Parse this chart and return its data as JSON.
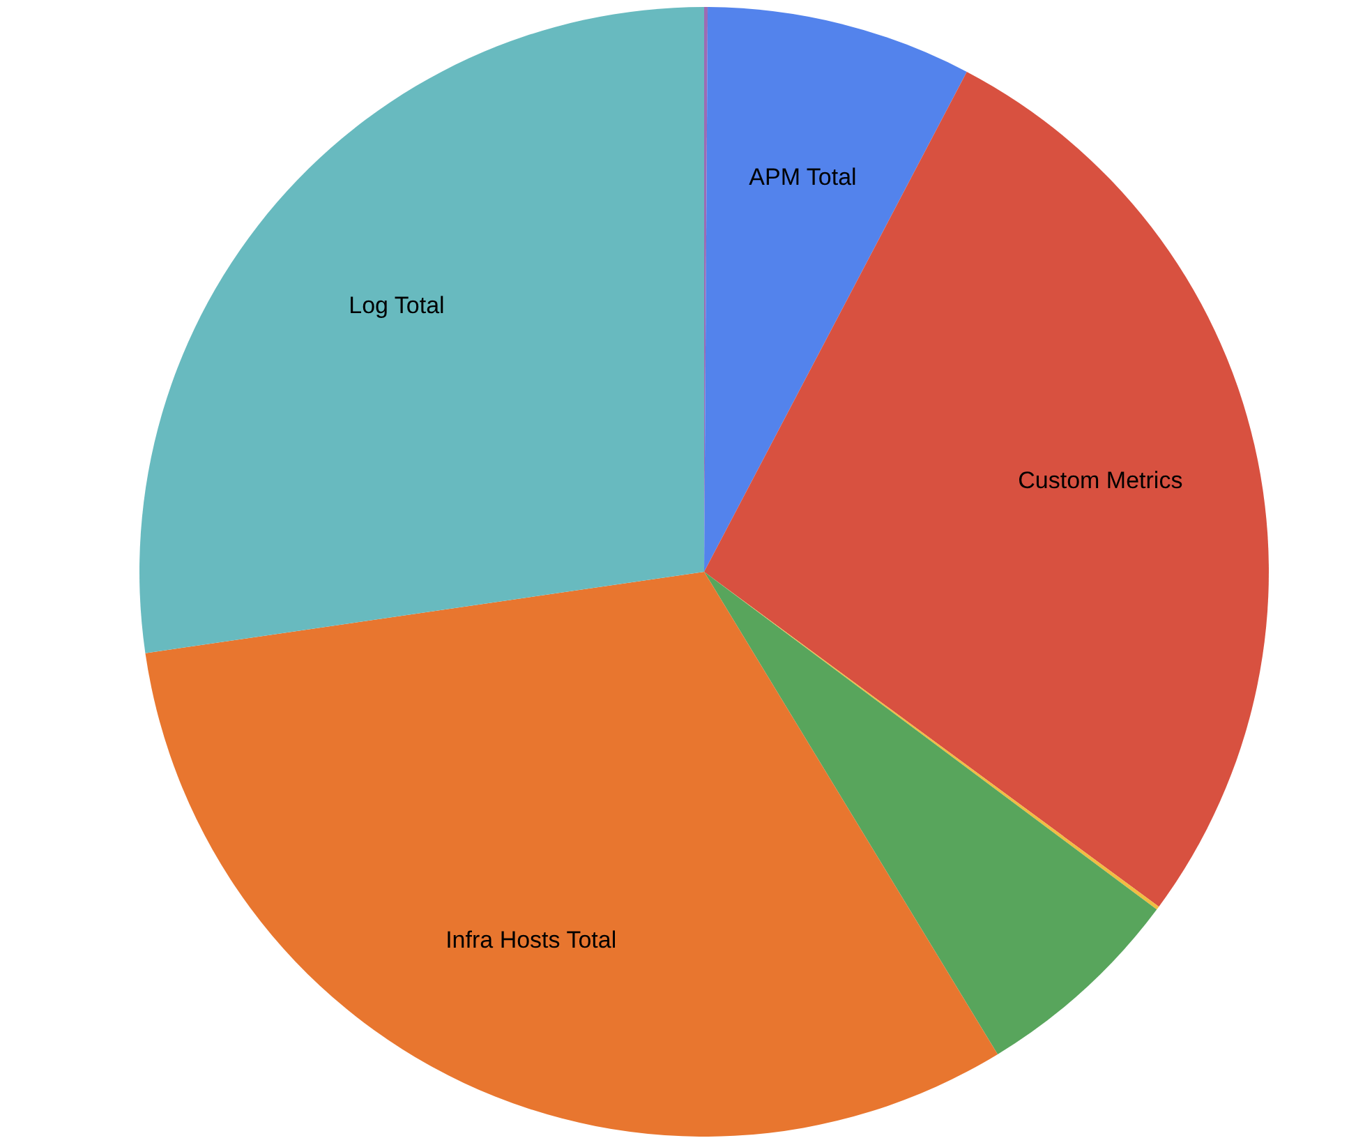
{
  "chart_data": {
    "type": "pie",
    "categories": [
      null,
      "APM Total",
      "Custom Metrics",
      null,
      null,
      "Infra Hosts Total",
      "Log Total"
    ],
    "values": [
      0.1,
      7.6,
      27.4,
      0.1,
      6.1,
      31.4,
      27.3
    ],
    "colors": [
      "#9d6bb3",
      "#5383ec",
      "#d85140",
      "#f1bd42",
      "#58a55c",
      "#e8762f",
      "#68babf"
    ],
    "legend": false
  }
}
